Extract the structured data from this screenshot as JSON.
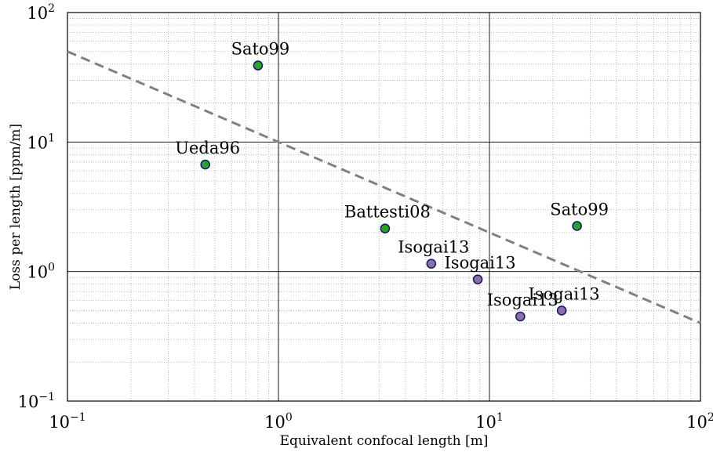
{
  "chart_data": {
    "type": "scatter",
    "xscale": "log",
    "yscale": "log",
    "xlim": [
      0.1,
      100
    ],
    "ylim": [
      0.1,
      100
    ],
    "xlabel": "Equivalent confocal length [m]",
    "ylabel": "Loss per length [ppm/m]",
    "grid": "major solid, minor dotted",
    "x_ticks": [
      {
        "base": "10",
        "exp": "−1",
        "value": 0.1
      },
      {
        "base": "10",
        "exp": "0",
        "value": 1
      },
      {
        "base": "10",
        "exp": "1",
        "value": 10
      },
      {
        "base": "10",
        "exp": "2",
        "value": 100
      }
    ],
    "y_ticks": [
      {
        "base": "10",
        "exp": "−1",
        "value": 0.1
      },
      {
        "base": "10",
        "exp": "0",
        "value": 1
      },
      {
        "base": "10",
        "exp": "1",
        "value": 10
      },
      {
        "base": "10",
        "exp": "2",
        "value": 100
      }
    ],
    "trend_line": {
      "style": "dashed",
      "color": "#808080",
      "points": [
        [
          0.1,
          50
        ],
        [
          100,
          0.4
        ]
      ]
    },
    "series": [
      {
        "color": "#22a822",
        "points": [
          {
            "x": 0.8,
            "y": 39,
            "label": "Sato99"
          },
          {
            "x": 0.45,
            "y": 6.7,
            "label": "Ueda96"
          },
          {
            "x": 3.2,
            "y": 2.15,
            "label": "Battesti08"
          },
          {
            "x": 26,
            "y": 2.25,
            "label": "Sato99"
          }
        ]
      },
      {
        "color": "#8a6fa8",
        "points": [
          {
            "x": 5.3,
            "y": 1.15,
            "label": "Isogai13"
          },
          {
            "x": 8.8,
            "y": 0.87,
            "label": "Isogai13"
          },
          {
            "x": 14,
            "y": 0.45,
            "label": "Isogai13"
          },
          {
            "x": 22,
            "y": 0.5,
            "label": "Isogai13"
          }
        ]
      }
    ]
  }
}
